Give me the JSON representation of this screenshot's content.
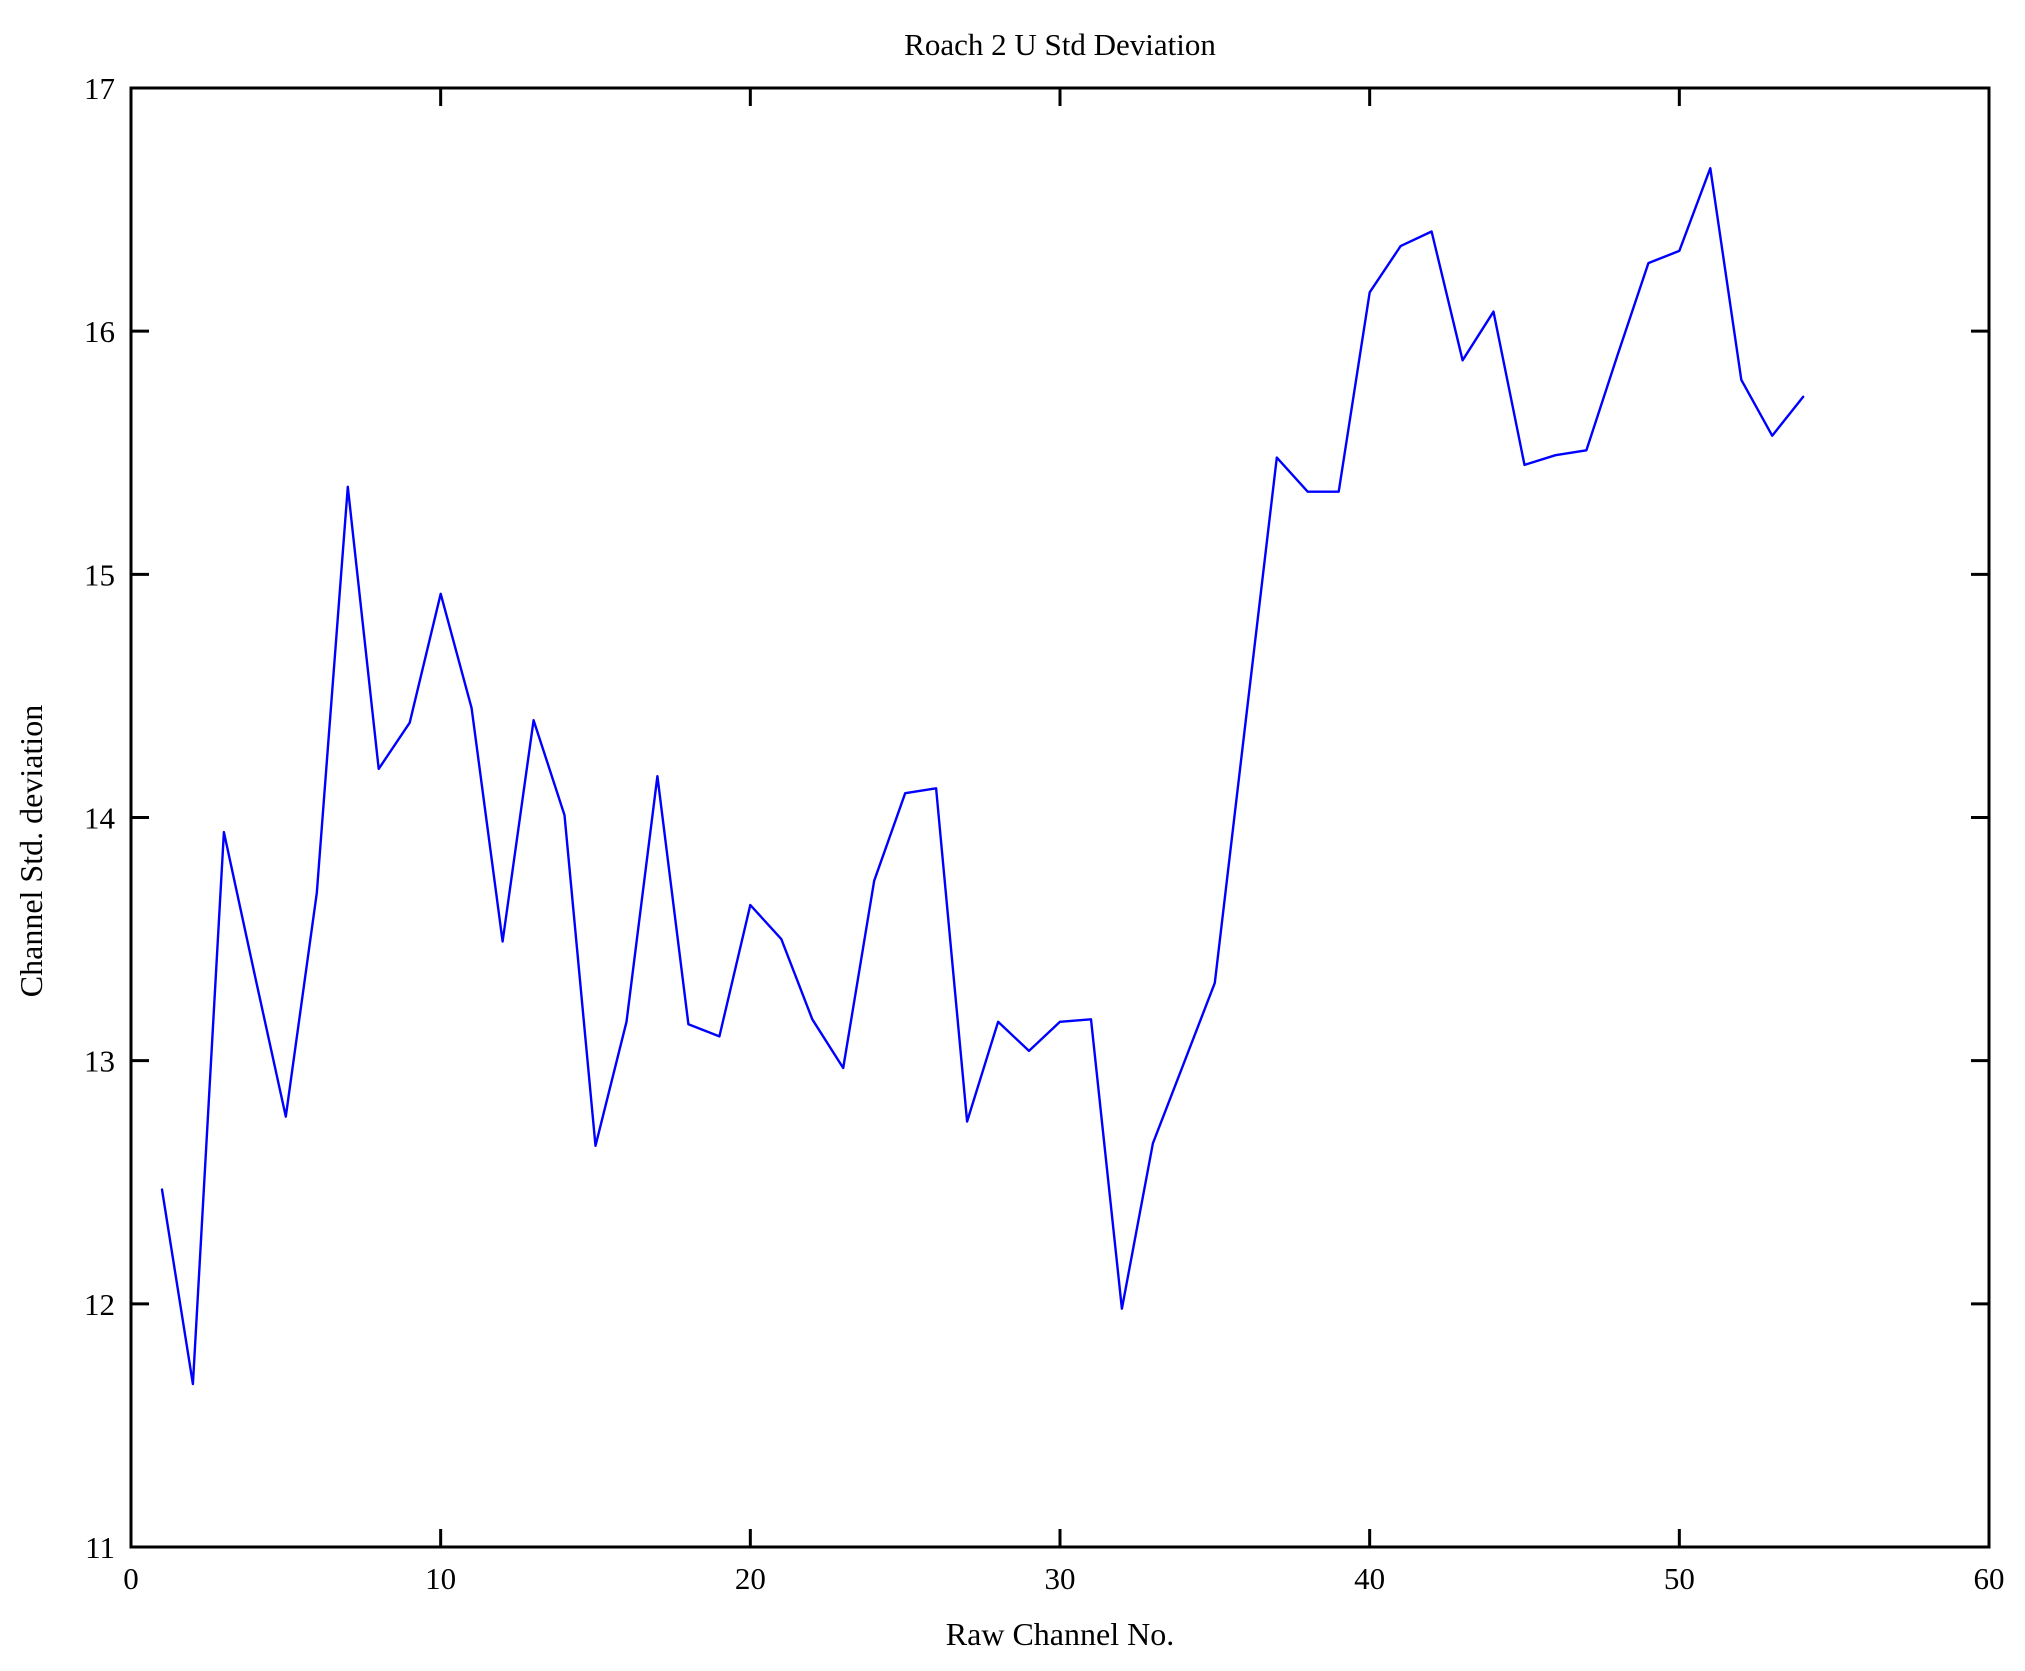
{
  "figure": {
    "background": "#ffffff",
    "axis_color": "#000000"
  },
  "chart_data": {
    "type": "line",
    "title": "Roach 2 U Std Deviation",
    "xlabel": "Raw Channel No.",
    "ylabel": "Channel Std. deviation",
    "xlim": [
      0,
      60
    ],
    "ylim": [
      11,
      17
    ],
    "x_ticks": [
      0,
      10,
      20,
      30,
      40,
      50,
      60
    ],
    "y_ticks": [
      11,
      12,
      13,
      14,
      15,
      16,
      17
    ],
    "grid": false,
    "legend_position": "none",
    "line_color": "#0000ff",
    "x": [
      1,
      2,
      3,
      4,
      5,
      6,
      7,
      8,
      9,
      10,
      11,
      12,
      13,
      14,
      15,
      16,
      17,
      18,
      19,
      20,
      21,
      22,
      23,
      24,
      25,
      26,
      27,
      28,
      29,
      30,
      31,
      32,
      33,
      34,
      35,
      36,
      37,
      38,
      39,
      40,
      41,
      42,
      43,
      44,
      45,
      46,
      47,
      48,
      49,
      50,
      51,
      52,
      53,
      54
    ],
    "series": [
      {
        "name": "Channel Std. deviation",
        "values": [
          12.47,
          11.67,
          13.94,
          13.35,
          12.77,
          13.69,
          15.36,
          14.2,
          14.39,
          14.92,
          14.45,
          13.49,
          14.4,
          14.01,
          12.65,
          13.16,
          14.17,
          13.15,
          13.1,
          13.64,
          13.5,
          13.17,
          12.97,
          13.74,
          14.1,
          14.12,
          12.75,
          13.16,
          13.04,
          13.16,
          13.17,
          11.98,
          12.66,
          12.99,
          13.32,
          14.4,
          15.48,
          15.34,
          15.34,
          16.16,
          16.35,
          16.41,
          15.88,
          16.08,
          15.45,
          15.49,
          15.51,
          15.9,
          16.28,
          16.33,
          16.67,
          15.8,
          15.57,
          15.73
        ]
      }
    ]
  }
}
